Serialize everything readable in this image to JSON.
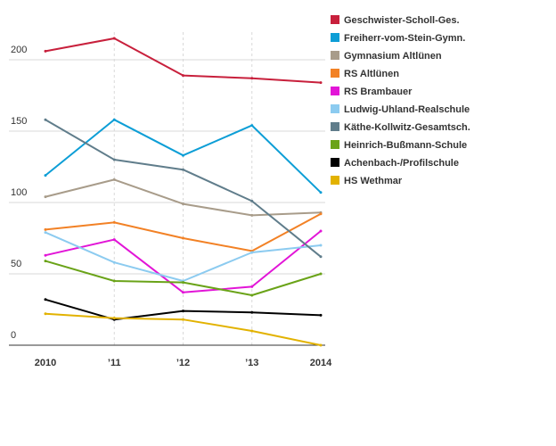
{
  "chart_data": {
    "type": "line",
    "title": "",
    "xlabel": "",
    "ylabel": "",
    "x": [
      2010,
      2011,
      2012,
      2013,
      2014
    ],
    "categories": [
      "2010",
      "’11",
      "’12",
      "’13",
      "2014"
    ],
    "ylim": [
      0,
      220
    ],
    "yticks": [
      0,
      50,
      100,
      150,
      200
    ],
    "ytick_labels": [
      "0",
      "50",
      "100",
      "150",
      "200"
    ],
    "grid": true,
    "legend_position": "right",
    "series": [
      {
        "name": "Geschwister-Scholl-Ges.",
        "color": "#c8203c",
        "values": [
          206,
          215,
          189,
          187,
          184
        ]
      },
      {
        "name": "Freiherr-vom-Stein-Gymn.",
        "color": "#0d9ed6",
        "values": [
          119,
          158,
          133,
          154,
          107
        ]
      },
      {
        "name": "Gymnasium Altlünen",
        "color": "#a89c8a",
        "values": [
          104,
          116,
          99,
          91,
          93
        ]
      },
      {
        "name": "RS Altlünen",
        "color": "#f28125",
        "values": [
          81,
          86,
          75,
          66,
          92
        ]
      },
      {
        "name": "RS Brambauer",
        "color": "#e215d7",
        "values": [
          63,
          74,
          37,
          41,
          80
        ]
      },
      {
        "name": "Ludwig-Uhland-Realschule",
        "color": "#8ccbf0",
        "values": [
          79,
          58,
          45,
          65,
          70
        ]
      },
      {
        "name": "Käthe-Kollwitz-Gesamtsch.",
        "color": "#607d8b",
        "values": [
          158,
          130,
          123,
          101,
          62
        ]
      },
      {
        "name": "Heinrich-Bußmann-Schule",
        "color": "#6aa318",
        "values": [
          59,
          45,
          44,
          35,
          50
        ]
      },
      {
        "name": "Achenbach-/Profilschule",
        "color": "#000000",
        "values": [
          32,
          18,
          24,
          23,
          21
        ]
      },
      {
        "name": "HS Wethmar",
        "color": "#e2b200",
        "values": [
          22,
          19,
          18,
          10,
          0
        ]
      }
    ]
  }
}
